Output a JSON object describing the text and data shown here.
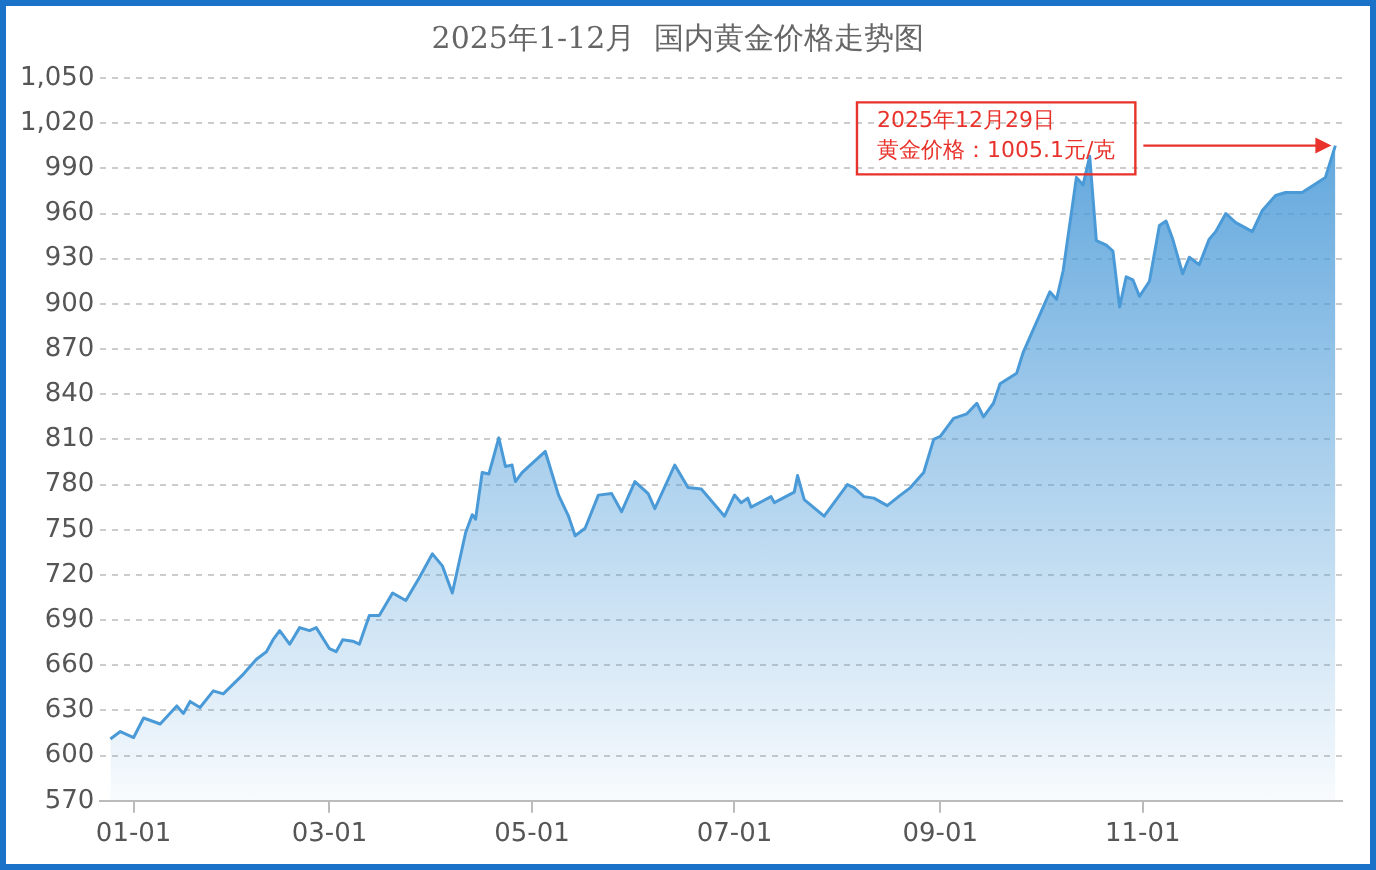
{
  "chart_data": {
    "type": "area",
    "title": "2025年1-12月  国内黄金价格走势图",
    "x": [
      "2024-12-25",
      "2024-12-28",
      "2025-01-01",
      "2025-01-04",
      "2025-01-09",
      "2025-01-14",
      "2025-01-16",
      "2025-01-18",
      "2025-01-21",
      "2025-01-25",
      "2025-01-28",
      "2025-02-03",
      "2025-02-07",
      "2025-02-10",
      "2025-02-12",
      "2025-02-14",
      "2025-02-17",
      "2025-02-20",
      "2025-02-23",
      "2025-02-25",
      "2025-03-01",
      "2025-03-03",
      "2025-03-05",
      "2025-03-08",
      "2025-03-10",
      "2025-03-13",
      "2025-03-16",
      "2025-03-20",
      "2025-03-24",
      "2025-03-28",
      "2025-04-01",
      "2025-04-04",
      "2025-04-07",
      "2025-04-11",
      "2025-04-13",
      "2025-04-14",
      "2025-04-16",
      "2025-04-18",
      "2025-04-21",
      "2025-04-23",
      "2025-04-25",
      "2025-04-26",
      "2025-04-28",
      "2025-05-05",
      "2025-05-09",
      "2025-05-12",
      "2025-05-14",
      "2025-05-17",
      "2025-05-21",
      "2025-05-25",
      "2025-05-28",
      "2025-06-01",
      "2025-06-05",
      "2025-06-07",
      "2025-06-13",
      "2025-06-17",
      "2025-06-21",
      "2025-06-28",
      "2025-07-01",
      "2025-07-03",
      "2025-07-05",
      "2025-07-06",
      "2025-07-12",
      "2025-07-13",
      "2025-07-19",
      "2025-07-20",
      "2025-07-22",
      "2025-07-28",
      "2025-08-04",
      "2025-08-06",
      "2025-08-09",
      "2025-08-12",
      "2025-08-16",
      "2025-08-20",
      "2025-08-23",
      "2025-08-27",
      "2025-08-30",
      "2025-09-01",
      "2025-09-05",
      "2025-09-09",
      "2025-09-12",
      "2025-09-14",
      "2025-09-17",
      "2025-09-19",
      "2025-09-24",
      "2025-09-26",
      "2025-10-04",
      "2025-10-06",
      "2025-10-08",
      "2025-10-12",
      "2025-10-14",
      "2025-10-16",
      "2025-10-18",
      "2025-10-21",
      "2025-10-23",
      "2025-10-25",
      "2025-10-27",
      "2025-10-29",
      "2025-10-31",
      "2025-11-03",
      "2025-11-06",
      "2025-11-08",
      "2025-11-10",
      "2025-11-13",
      "2025-11-15",
      "2025-11-18",
      "2025-11-21",
      "2025-11-23",
      "2025-11-26",
      "2025-11-29",
      "2025-12-04",
      "2025-12-07",
      "2025-12-11",
      "2025-12-14",
      "2025-12-19",
      "2025-12-26",
      "2025-12-29"
    ],
    "series": [
      {
        "color": "#4a9ad8",
        "values": [
          611,
          616,
          612,
          625,
          621,
          633,
          628,
          636,
          632,
          643,
          641,
          654,
          664,
          669,
          677,
          683,
          674,
          685,
          683,
          685,
          671,
          669,
          677,
          676,
          674,
          693,
          693,
          708,
          703,
          718,
          734,
          726,
          708,
          748,
          760,
          757,
          788,
          787,
          811,
          792,
          793,
          782,
          788,
          802,
          773,
          759,
          746,
          751,
          773,
          774,
          762,
          782,
          774,
          764,
          793,
          778,
          777,
          759,
          773,
          768,
          771,
          765,
          772,
          768,
          775,
          786,
          770,
          759,
          780,
          778,
          772,
          771,
          766,
          773,
          778,
          788,
          810,
          812,
          824,
          827,
          834,
          825,
          834,
          847,
          854,
          868,
          908,
          903,
          922,
          984,
          979,
          998,
          942,
          939,
          935,
          898,
          918,
          916,
          905,
          915,
          952,
          955,
          943,
          920,
          931,
          926,
          943,
          948,
          960,
          954,
          948,
          962,
          972,
          974,
          974,
          984,
          1005.1
        ]
      }
    ],
    "xlim": [
      "2024-12-22",
      "2025-12-31"
    ],
    "xticks": [
      {
        "value": "2025-01-01",
        "label": "01-01"
      },
      {
        "value": "2025-03-01",
        "label": "03-01"
      },
      {
        "value": "2025-05-01",
        "label": "05-01"
      },
      {
        "value": "2025-07-01",
        "label": "07-01"
      },
      {
        "value": "2025-09-01",
        "label": "09-01"
      },
      {
        "value": "2025-11-01",
        "label": "11-01"
      }
    ],
    "ylim": [
      570,
      1050
    ],
    "yticks": [
      570,
      600,
      630,
      660,
      690,
      720,
      750,
      780,
      810,
      840,
      870,
      900,
      930,
      960,
      990,
      {
        "value": 1020,
        "label": "1,020"
      },
      {
        "value": 1050,
        "label": "1,050"
      }
    ],
    "grid": "y",
    "legend": false,
    "marker": "none",
    "line_style": "solid",
    "annotations": [
      "2025年12月29日",
      {
        "text": "黄金价格：1005.1元/克",
        "x": "2025-12-29",
        "y": 1005.1
      }
    ]
  }
}
